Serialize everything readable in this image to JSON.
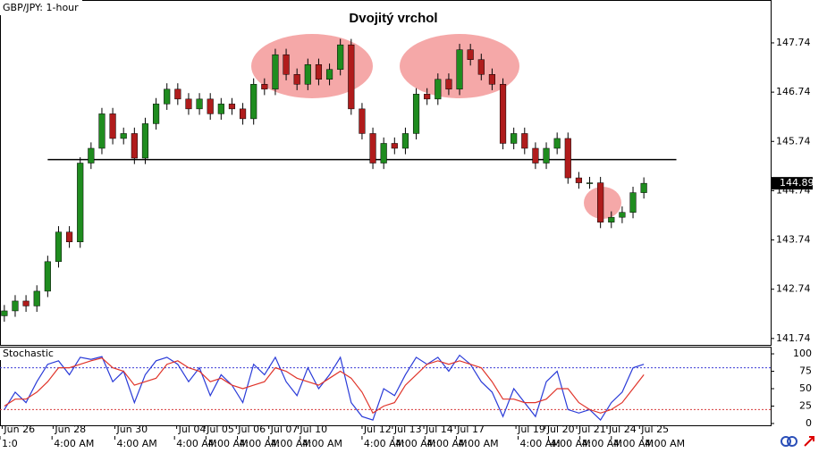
{
  "chart_data": {
    "type": "candlestick",
    "title": "Dvojitý vrchol",
    "symbol_label": "GBP/JPY: 1-hour",
    "up_color": "#1f8c1f",
    "down_color": "#b01c1c",
    "open": [
      142.2,
      142.3,
      142.5,
      142.4,
      142.7,
      143.3,
      143.9,
      143.7,
      145.3,
      145.6,
      146.3,
      145.8,
      145.9,
      145.4,
      146.1,
      146.5,
      146.8,
      146.6,
      146.4,
      146.6,
      146.3,
      146.5,
      146.4,
      146.2,
      146.9,
      146.8,
      147.5,
      147.1,
      146.9,
      147.3,
      147.0,
      147.2,
      147.7,
      146.4,
      145.9,
      145.3,
      145.7,
      145.6,
      145.9,
      146.7,
      146.6,
      147.0,
      146.8,
      147.6,
      147.4,
      147.1,
      146.9,
      145.7,
      145.9,
      145.6,
      145.3,
      145.6,
      145.8,
      145.0,
      144.9,
      144.9,
      144.1,
      144.2,
      144.3,
      144.7
    ],
    "high": [
      142.42,
      142.62,
      142.62,
      142.82,
      143.42,
      144.02,
      144.02,
      145.42,
      145.72,
      146.42,
      146.42,
      146.02,
      146.02,
      146.22,
      146.62,
      146.92,
      146.92,
      146.72,
      146.72,
      146.72,
      146.62,
      146.62,
      146.52,
      147.02,
      147.02,
      147.62,
      147.62,
      147.22,
      147.42,
      147.42,
      147.32,
      147.82,
      147.82,
      146.52,
      146.02,
      145.82,
      145.82,
      146.02,
      146.82,
      146.82,
      147.12,
      147.12,
      147.72,
      147.72,
      147.52,
      147.22,
      147.02,
      146.02,
      146.02,
      145.72,
      145.72,
      145.92,
      145.92,
      145.12,
      145.02,
      145.02,
      144.32,
      144.42,
      144.82,
      145.01
    ],
    "low": [
      142.08,
      142.18,
      142.28,
      142.28,
      142.58,
      143.18,
      143.58,
      143.58,
      145.18,
      145.48,
      145.68,
      145.68,
      145.28,
      145.28,
      145.98,
      146.38,
      146.48,
      146.28,
      146.28,
      146.18,
      146.18,
      146.28,
      146.08,
      146.08,
      146.68,
      146.68,
      146.98,
      146.78,
      146.78,
      146.88,
      146.88,
      147.08,
      146.28,
      145.78,
      145.18,
      145.18,
      145.48,
      145.48,
      145.78,
      146.48,
      146.48,
      146.68,
      146.68,
      147.28,
      146.98,
      146.78,
      145.58,
      145.58,
      145.48,
      145.18,
      145.18,
      145.48,
      144.88,
      144.78,
      144.78,
      143.98,
      143.98,
      144.08,
      144.18,
      144.58
    ],
    "close": [
      142.3,
      142.5,
      142.4,
      142.7,
      143.3,
      143.9,
      143.7,
      145.3,
      145.6,
      146.3,
      145.8,
      145.9,
      145.4,
      146.1,
      146.5,
      146.8,
      146.6,
      146.4,
      146.6,
      146.3,
      146.5,
      146.4,
      146.2,
      146.9,
      146.8,
      147.5,
      147.1,
      146.9,
      147.3,
      147.0,
      147.2,
      147.7,
      146.4,
      145.9,
      145.3,
      145.7,
      145.6,
      145.9,
      146.7,
      146.6,
      147.0,
      146.8,
      147.6,
      147.4,
      147.1,
      146.9,
      145.7,
      145.9,
      145.6,
      145.3,
      145.6,
      145.8,
      145.0,
      144.9,
      144.9,
      144.1,
      144.2,
      144.3,
      144.7,
      144.89
    ],
    "xlim": [
      -0.4,
      70.7
    ],
    "ylim": [
      141.61,
      148.61
    ],
    "yticks": [
      147.74,
      146.74,
      145.74,
      144.74,
      143.74,
      142.74,
      141.74
    ],
    "neckline": {
      "price": 145.37,
      "x": [
        4,
        62
      ],
      "color": "#000000"
    },
    "xticks": [
      {
        "value": -0.2,
        "label": "Jun 26"
      },
      {
        "value": 4.5,
        "label": "Jun 28"
      },
      {
        "value": 10.2,
        "label": "Jun 30"
      },
      {
        "value": 15.9,
        "label": "Jul 04"
      },
      {
        "value": 18.5,
        "label": "Jul 05"
      },
      {
        "value": 21.4,
        "label": "Jul 06"
      },
      {
        "value": 24.4,
        "label": "Jul 07"
      },
      {
        "value": 27.1,
        "label": "Jul 10"
      },
      {
        "value": 33,
        "label": "Jul 12"
      },
      {
        "value": 35.8,
        "label": "Jul 13"
      },
      {
        "value": 38.7,
        "label": "Jul 14"
      },
      {
        "value": 41.6,
        "label": "Jul 17"
      },
      {
        "value": 47.2,
        "label": "Jul 19"
      },
      {
        "value": 49.9,
        "label": "Jul 20"
      },
      {
        "value": 52.8,
        "label": "Jul 21"
      },
      {
        "value": 55.6,
        "label": "Jul 24"
      },
      {
        "value": 58.6,
        "label": "Jul 25"
      }
    ],
    "xticks_time": [
      {
        "value": -0.4,
        "label": "1:0"
      },
      {
        "value": 4.4,
        "label": "4:00 AM"
      },
      {
        "value": 10.2,
        "label": "4:00 AM"
      },
      {
        "value": 15.7,
        "label": "4:00 AM"
      },
      {
        "value": 18.6,
        "label": "4:00 AM"
      },
      {
        "value": 21.5,
        "label": "4:00 AM"
      },
      {
        "value": 24.4,
        "label": "4:00 AM"
      },
      {
        "value": 27.3,
        "label": "4:00 AM"
      },
      {
        "value": 33,
        "label": "4:00 AM"
      },
      {
        "value": 35.9,
        "label": "4:00 AM"
      },
      {
        "value": 38.8,
        "label": "4:00 AM"
      },
      {
        "value": 41.7,
        "label": "4:00 AM"
      },
      {
        "value": 47.4,
        "label": "4:00 AM"
      },
      {
        "value": 50.2,
        "label": "4:00 AM"
      },
      {
        "value": 53.1,
        "label": "4:00 AM"
      },
      {
        "value": 56,
        "label": "4:00 AM"
      },
      {
        "value": 58.9,
        "label": "4:00 AM"
      }
    ],
    "oscillator": {
      "type": "line",
      "name": "Stochastic",
      "ylim": [
        -2.6,
        110.3
      ],
      "yticks": [
        100,
        75,
        50,
        25,
        0
      ],
      "levels": [
        {
          "value": 80,
          "color": "#3b3bd6"
        },
        {
          "value": 20,
          "color": "#d63b3b"
        }
      ],
      "series": [
        {
          "color": "#2a3bd8",
          "values": [
            20,
            45,
            30,
            60,
            85,
            90,
            70,
            95,
            92,
            96,
            60,
            75,
            30,
            70,
            90,
            95,
            85,
            60,
            80,
            40,
            70,
            55,
            30,
            85,
            70,
            95,
            60,
            40,
            80,
            50,
            70,
            95,
            30,
            10,
            5,
            50,
            40,
            70,
            95,
            85,
            95,
            75,
            98,
            85,
            60,
            45,
            10,
            50,
            30,
            10,
            60,
            75,
            20,
            15,
            20,
            5,
            30,
            45,
            80,
            85
          ]
        },
        {
          "color": "#e0342a",
          "values": [
            25,
            35,
            35,
            45,
            60,
            80,
            80,
            85,
            90,
            94,
            80,
            75,
            55,
            60,
            65,
            85,
            90,
            80,
            75,
            60,
            65,
            55,
            50,
            55,
            60,
            80,
            75,
            65,
            60,
            55,
            65,
            75,
            65,
            45,
            15,
            25,
            30,
            55,
            70,
            85,
            90,
            85,
            90,
            85,
            80,
            60,
            35,
            35,
            30,
            30,
            35,
            50,
            50,
            30,
            20,
            15,
            20,
            30,
            50,
            70
          ]
        }
      ]
    }
  }
}
